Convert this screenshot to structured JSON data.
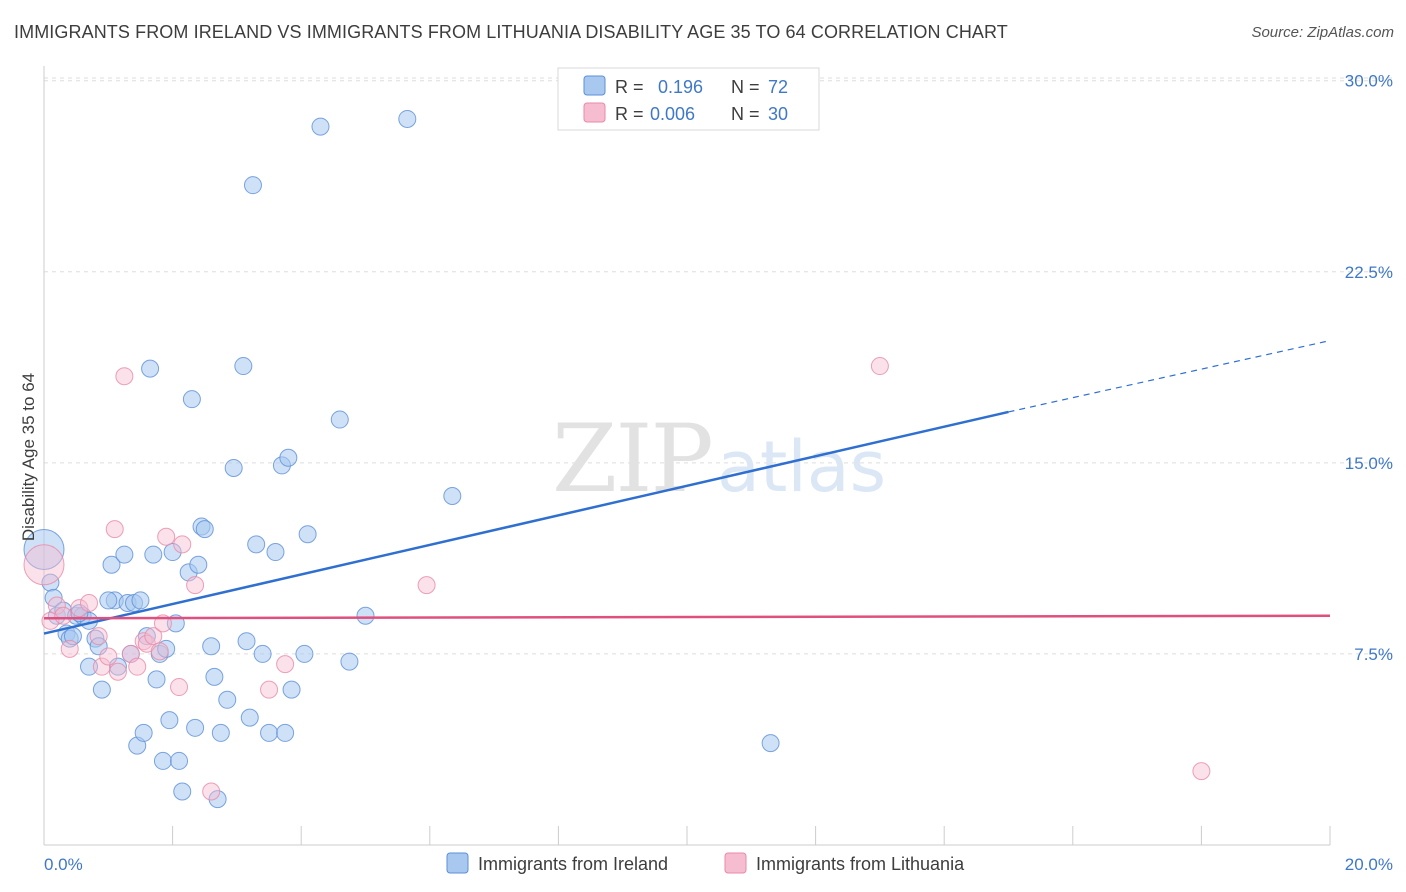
{
  "title": "IMMIGRANTS FROM IRELAND VS IMMIGRANTS FROM LITHUANIA DISABILITY AGE 35 TO 64 CORRELATION CHART",
  "source": "Source: ZipAtlas.com",
  "watermark": {
    "zip": "ZIP",
    "atlas": "atlas"
  },
  "legend_top": {
    "rows": [
      {
        "r_label": "R =",
        "r_value": "0.196",
        "n_label": "N =",
        "n_value": "72"
      },
      {
        "r_label": "R =",
        "r_value": "0.006",
        "n_label": "N =",
        "n_value": "30"
      }
    ]
  },
  "colors": {
    "ireland_fill": "#a8c8f0",
    "ireland_stroke": "#5b8fd6",
    "ireland_line": "#2f6fd0",
    "lithuania_fill": "#f6bcd0",
    "lithuania_stroke": "#e88aa8",
    "lithuania_line": "#e0507f",
    "tick_label": "#3f78c8",
    "grid": "#dddddd"
  },
  "chart_data": {
    "type": "scatter",
    "title": "IMMIGRANTS FROM IRELAND VS IMMIGRANTS FROM LITHUANIA DISABILITY AGE 35 TO 64 CORRELATION CHART",
    "xlabel": "",
    "ylabel": "Disability Age 35 to 64",
    "xlim": [
      0,
      20
    ],
    "ylim": [
      0,
      30.5
    ],
    "x_tick_labels": [
      "0.0%",
      "20.0%"
    ],
    "y_ticks": [
      7.5,
      15.0,
      22.5,
      30.0
    ],
    "y_tick_labels": [
      "7.5%",
      "15.0%",
      "22.5%",
      "30.0%"
    ],
    "grid": true,
    "legend_position": "bottom",
    "series": [
      {
        "name": "Immigrants from Ireland",
        "color": "#a8c8f0",
        "trend": {
          "x0": 0,
          "y0": 8.3,
          "x1": 15.0,
          "y1": 17.0,
          "dashed_to_x": 20,
          "dashed_to_y": 19.8
        },
        "points": [
          [
            0.0,
            11.6
          ],
          [
            0.1,
            10.3
          ],
          [
            0.15,
            9.7
          ],
          [
            0.2,
            9.0
          ],
          [
            0.3,
            9.2
          ],
          [
            0.35,
            8.3
          ],
          [
            0.4,
            8.1
          ],
          [
            0.45,
            8.2
          ],
          [
            0.5,
            9.0
          ],
          [
            0.6,
            9.0
          ],
          [
            0.7,
            8.8
          ],
          [
            0.8,
            8.1
          ],
          [
            0.85,
            7.8
          ],
          [
            0.7,
            7.0
          ],
          [
            0.9,
            6.1
          ],
          [
            1.05,
            11.0
          ],
          [
            1.1,
            9.6
          ],
          [
            1.15,
            7.0
          ],
          [
            1.25,
            11.4
          ],
          [
            1.3,
            9.5
          ],
          [
            1.35,
            7.5
          ],
          [
            1.4,
            9.5
          ],
          [
            1.45,
            3.9
          ],
          [
            1.55,
            4.4
          ],
          [
            1.6,
            8.2
          ],
          [
            1.65,
            18.7
          ],
          [
            1.7,
            11.4
          ],
          [
            1.75,
            6.5
          ],
          [
            1.8,
            7.5
          ],
          [
            1.85,
            3.3
          ],
          [
            1.9,
            7.7
          ],
          [
            1.95,
            4.9
          ],
          [
            2.0,
            11.5
          ],
          [
            2.05,
            8.7
          ],
          [
            2.1,
            3.3
          ],
          [
            2.15,
            2.1
          ],
          [
            2.25,
            10.7
          ],
          [
            2.3,
            17.5
          ],
          [
            2.35,
            4.6
          ],
          [
            2.4,
            11.0
          ],
          [
            2.45,
            12.5
          ],
          [
            2.5,
            12.4
          ],
          [
            2.6,
            7.8
          ],
          [
            2.65,
            6.6
          ],
          [
            2.7,
            1.8
          ],
          [
            2.75,
            4.4
          ],
          [
            2.85,
            5.7
          ],
          [
            2.95,
            14.8
          ],
          [
            3.1,
            18.8
          ],
          [
            3.15,
            8.0
          ],
          [
            3.2,
            5.0
          ],
          [
            3.25,
            25.9
          ],
          [
            3.3,
            11.8
          ],
          [
            3.4,
            7.5
          ],
          [
            3.5,
            4.4
          ],
          [
            3.6,
            11.5
          ],
          [
            3.7,
            14.9
          ],
          [
            3.75,
            4.4
          ],
          [
            3.8,
            15.2
          ],
          [
            3.85,
            6.1
          ],
          [
            4.05,
            7.5
          ],
          [
            4.1,
            12.2
          ],
          [
            4.3,
            28.2
          ],
          [
            4.6,
            16.7
          ],
          [
            4.75,
            7.2
          ],
          [
            5.0,
            9.0
          ],
          [
            5.65,
            28.5
          ],
          [
            6.35,
            13.7
          ],
          [
            11.3,
            4.0
          ],
          [
            1.0,
            9.6
          ],
          [
            0.55,
            9.1
          ],
          [
            1.5,
            9.6
          ]
        ]
      },
      {
        "name": "Immigrants from Lithuania",
        "color": "#f6bcd0",
        "trend": {
          "x0": 0,
          "y0": 8.9,
          "x1": 20,
          "y1": 9.0
        },
        "points": [
          [
            0.0,
            11.0
          ],
          [
            0.1,
            8.8
          ],
          [
            0.2,
            9.4
          ],
          [
            0.3,
            9.0
          ],
          [
            0.4,
            7.7
          ],
          [
            0.55,
            9.3
          ],
          [
            0.7,
            9.5
          ],
          [
            0.85,
            8.2
          ],
          [
            0.9,
            7.0
          ],
          [
            1.0,
            7.4
          ],
          [
            1.1,
            12.4
          ],
          [
            1.15,
            6.8
          ],
          [
            1.25,
            18.4
          ],
          [
            1.35,
            7.5
          ],
          [
            1.45,
            7.0
          ],
          [
            1.55,
            8.0
          ],
          [
            1.6,
            7.9
          ],
          [
            1.7,
            8.2
          ],
          [
            1.8,
            7.6
          ],
          [
            1.85,
            8.7
          ],
          [
            1.9,
            12.1
          ],
          [
            2.1,
            6.2
          ],
          [
            2.15,
            11.8
          ],
          [
            2.35,
            10.2
          ],
          [
            2.6,
            2.1
          ],
          [
            3.5,
            6.1
          ],
          [
            3.75,
            7.1
          ],
          [
            5.95,
            10.2
          ],
          [
            13.0,
            18.8
          ],
          [
            18.0,
            2.9
          ]
        ]
      }
    ]
  }
}
